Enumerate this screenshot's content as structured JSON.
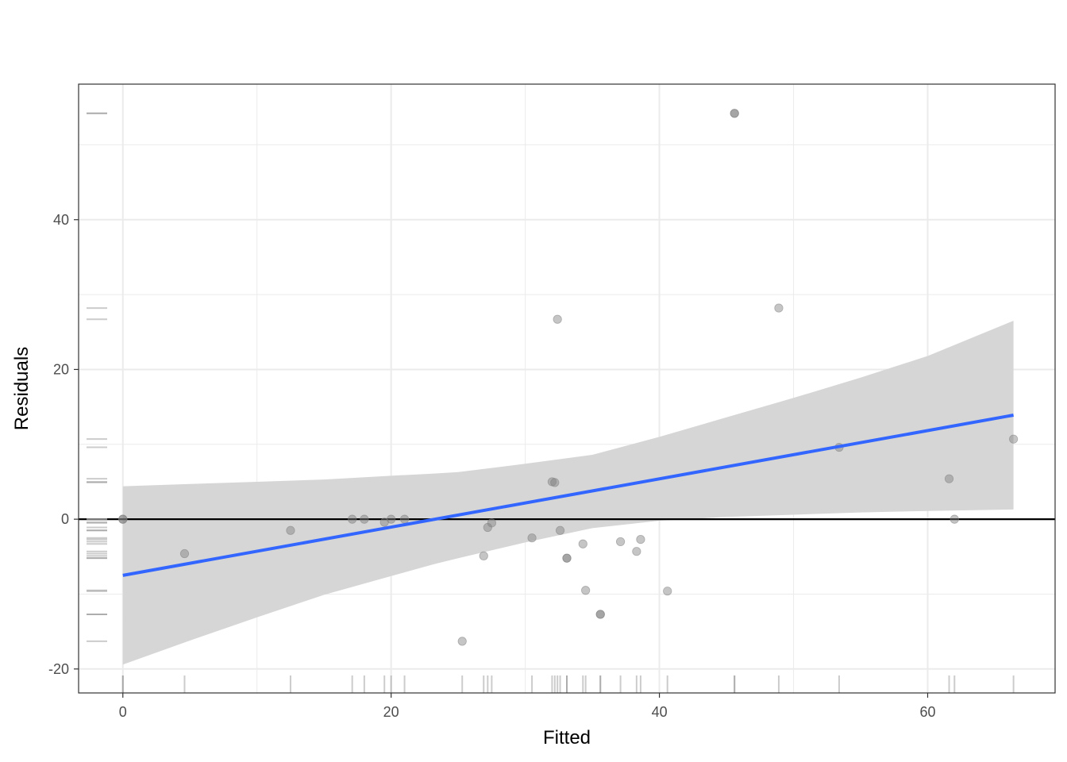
{
  "chart_data": {
    "type": "scatter",
    "xlabel": "Fitted",
    "ylabel": "Residuals",
    "xlim": [
      -3.3,
      69.5
    ],
    "ylim": [
      -23.2,
      58.1
    ],
    "x_ticks": [
      0,
      20,
      40,
      60
    ],
    "x_tick_labels": [
      "0",
      "20",
      "40",
      "60"
    ],
    "y_ticks": [
      -20,
      0,
      20,
      40
    ],
    "y_tick_labels": [
      "-20",
      "0",
      "20",
      "40"
    ],
    "grid": true,
    "reference_line_y": 0,
    "points": [
      {
        "x": 0,
        "y": 0
      },
      {
        "x": 0,
        "y": 0
      },
      {
        "x": 4.6,
        "y": -4.6
      },
      {
        "x": 12.5,
        "y": -1.5
      },
      {
        "x": 17.1,
        "y": 0
      },
      {
        "x": 18.0,
        "y": 0
      },
      {
        "x": 19.5,
        "y": -0.4
      },
      {
        "x": 20.0,
        "y": 0
      },
      {
        "x": 21.0,
        "y": 0
      },
      {
        "x": 25.3,
        "y": -16.3
      },
      {
        "x": 26.9,
        "y": -4.9
      },
      {
        "x": 27.2,
        "y": -1.1
      },
      {
        "x": 27.5,
        "y": -0.5
      },
      {
        "x": 30.5,
        "y": -2.5
      },
      {
        "x": 32.0,
        "y": 5.0
      },
      {
        "x": 32.2,
        "y": 4.9
      },
      {
        "x": 32.4,
        "y": 26.7
      },
      {
        "x": 32.6,
        "y": -1.5
      },
      {
        "x": 33.1,
        "y": -5.2
      },
      {
        "x": 33.1,
        "y": -5.2
      },
      {
        "x": 34.3,
        "y": -3.3
      },
      {
        "x": 34.5,
        "y": -9.5
      },
      {
        "x": 35.6,
        "y": -12.7
      },
      {
        "x": 35.6,
        "y": -12.7
      },
      {
        "x": 37.1,
        "y": -3.0
      },
      {
        "x": 38.3,
        "y": -4.3
      },
      {
        "x": 38.6,
        "y": -2.7
      },
      {
        "x": 40.6,
        "y": -9.6
      },
      {
        "x": 45.6,
        "y": 54.2
      },
      {
        "x": 45.6,
        "y": 54.2
      },
      {
        "x": 48.9,
        "y": 28.2
      },
      {
        "x": 53.4,
        "y": 9.6
      },
      {
        "x": 61.6,
        "y": 5.4
      },
      {
        "x": 62.0,
        "y": 0
      },
      {
        "x": 66.4,
        "y": 10.7
      }
    ],
    "fit_line": [
      [
        0,
        -7.5
      ],
      [
        66.4,
        13.9
      ]
    ],
    "confidence_band": {
      "x": [
        0,
        5,
        10,
        15,
        20,
        23.2,
        25,
        30,
        35,
        40,
        45,
        50,
        55,
        60,
        66.4
      ],
      "lower": [
        -19.4,
        -16.2,
        -13.1,
        -10.1,
        -7.6,
        -6.0,
        -5.2,
        -3.1,
        -1.2,
        -0.2,
        0.3,
        0.6,
        0.9,
        1.1,
        1.3
      ],
      "upper": [
        4.4,
        4.7,
        5.0,
        5.3,
        5.8,
        6.1,
        6.3,
        7.4,
        8.6,
        11.0,
        13.6,
        16.2,
        18.9,
        21.8,
        26.5
      ]
    },
    "colors": {
      "points": "#7f7f7f",
      "fit_line": "#3366ff",
      "band": "#d6d6d6",
      "zero_line": "#000000",
      "grid": "#ebebeb",
      "panel_border": "#333333"
    }
  }
}
